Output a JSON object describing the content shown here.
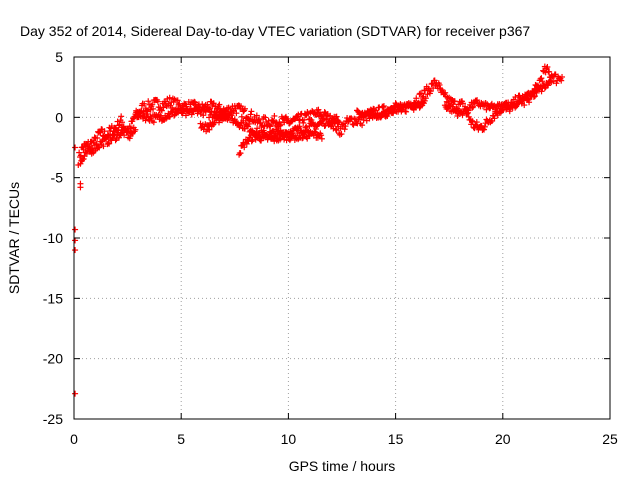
{
  "chart_data": {
    "type": "scatter",
    "title": "Day 352 of 2014, Sidereal Day-to-day VTEC variation (SDTVAR) for receiver p367",
    "xlabel": "GPS time / hours",
    "ylabel": "SDTVAR / TECUs",
    "xlim": [
      0,
      25
    ],
    "ylim": [
      -25,
      5
    ],
    "xticks": [
      0,
      5,
      10,
      15,
      20,
      25
    ],
    "yticks": [
      -25,
      -20,
      -15,
      -10,
      -5,
      0,
      5
    ],
    "grid": true,
    "marker": "plus",
    "color": "#ff0000",
    "series": [
      {
        "name": "SDTVAR",
        "outliers": [
          [
            0.3,
            -5.5
          ],
          [
            0.3,
            -5.8
          ],
          [
            0.05,
            -9.3
          ],
          [
            0.05,
            -10.2
          ],
          [
            0.05,
            -11.0
          ],
          [
            0.05,
            -22.9
          ],
          [
            0.05,
            -2.5
          ]
        ],
        "tracks": [
          {
            "points": [
              [
                0.2,
                -3.5
              ],
              [
                0.4,
                -2.5
              ],
              [
                0.7,
                -2.3
              ],
              [
                1.0,
                -2.0
              ],
              [
                1.2,
                -1.3
              ],
              [
                1.5,
                -1.5
              ],
              [
                1.8,
                -1.0
              ],
              [
                2.0,
                -0.8
              ],
              [
                2.2,
                -0.3
              ],
              [
                2.4,
                -0.9
              ],
              [
                2.6,
                -1.1
              ],
              [
                2.8,
                0.0
              ],
              [
                3.0,
                0.3
              ],
              [
                3.2,
                0.8
              ],
              [
                3.5,
                0.9
              ],
              [
                3.8,
                1.1
              ],
              [
                4.1,
                1.0
              ],
              [
                4.5,
                1.3
              ],
              [
                4.8,
                1.0
              ],
              [
                5.1,
                0.9
              ],
              [
                5.5,
                0.9
              ],
              [
                5.9,
                0.7
              ],
              [
                6.3,
                0.9
              ],
              [
                6.7,
                0.7
              ],
              [
                7.1,
                0.5
              ],
              [
                7.5,
                0.8
              ],
              [
                7.9,
                0.4
              ],
              [
                8.2,
                0.2
              ],
              [
                8.6,
                -0.4
              ],
              [
                9.0,
                -0.4
              ],
              [
                9.5,
                -0.3
              ],
              [
                10.0,
                -0.4
              ],
              [
                10.5,
                -0.2
              ],
              [
                11.0,
                0.1
              ],
              [
                11.4,
                0.3
              ],
              [
                11.8,
                0.0
              ],
              [
                12.1,
                -0.5
              ],
              [
                12.4,
                -1.1
              ],
              [
                12.7,
                -0.5
              ],
              [
                13.0,
                -0.2
              ],
              [
                13.4,
                -0.3
              ],
              [
                13.8,
                0.3
              ],
              [
                14.2,
                0.4
              ],
              [
                14.6,
                0.6
              ],
              [
                15.0,
                0.9
              ],
              [
                15.3,
                0.6
              ],
              [
                15.6,
                1.0
              ],
              [
                16.0,
                1.5
              ],
              [
                16.3,
                1.8
              ],
              [
                16.6,
                2.4
              ],
              [
                16.9,
                2.9
              ],
              [
                17.2,
                1.8
              ],
              [
                17.5,
                1.3
              ],
              [
                17.8,
                1.0
              ],
              [
                18.1,
                1.0
              ],
              [
                18.3,
                0.4
              ],
              [
                18.6,
                -0.6
              ],
              [
                18.9,
                -0.9
              ],
              [
                19.2,
                -0.6
              ],
              [
                19.5,
                0.1
              ],
              [
                19.8,
                0.6
              ],
              [
                20.1,
                1.0
              ],
              [
                20.4,
                0.8
              ],
              [
                20.7,
                1.5
              ],
              [
                21.0,
                1.3
              ],
              [
                21.3,
                1.8
              ],
              [
                21.6,
                2.4
              ],
              [
                21.8,
                3.3
              ],
              [
                22.0,
                3.9
              ],
              [
                22.2,
                3.6
              ],
              [
                22.5,
                3.2
              ],
              [
                22.8,
                3.5
              ]
            ],
            "spread": 0.45
          },
          {
            "points": [
              [
                0.3,
                -3.8
              ],
              [
                0.6,
                -3.0
              ],
              [
                0.9,
                -2.6
              ],
              [
                1.3,
                -2.1
              ],
              [
                1.6,
                -1.9
              ],
              [
                1.9,
                -1.6
              ],
              [
                2.3,
                -1.2
              ],
              [
                2.6,
                -1.5
              ],
              [
                2.9,
                -1.0
              ]
            ],
            "spread": 0.35
          },
          {
            "points": [
              [
                2.9,
                0.3
              ],
              [
                3.3,
                0.1
              ],
              [
                3.8,
                -0.1
              ],
              [
                4.4,
                0.2
              ],
              [
                4.9,
                0.5
              ],
              [
                5.3,
                0.3
              ],
              [
                5.8,
                0.7
              ],
              [
                6.3,
                0.3
              ],
              [
                6.8,
                0.3
              ],
              [
                7.2,
                0.1
              ],
              [
                7.5,
                -0.3
              ],
              [
                7.9,
                -0.6
              ],
              [
                8.3,
                -1.0
              ],
              [
                8.7,
                -1.4
              ],
              [
                9.1,
                -1.4
              ],
              [
                9.6,
                -1.3
              ],
              [
                10.1,
                -1.2
              ],
              [
                10.6,
                -1.0
              ],
              [
                11.1,
                -0.8
              ],
              [
                11.5,
                -0.5
              ],
              [
                11.8,
                -0.3
              ],
              [
                12.1,
                -0.2
              ],
              [
                12.4,
                -0.2
              ]
            ],
            "spread": 0.35
          },
          {
            "points": [
              [
                5.9,
                -0.6
              ],
              [
                6.2,
                -0.9
              ],
              [
                6.5,
                -0.5
              ],
              [
                6.8,
                -0.1
              ],
              [
                7.2,
                0.2
              ]
            ],
            "spread": 0.3
          },
          {
            "points": [
              [
                7.7,
                -2.9
              ],
              [
                7.9,
                -2.3
              ],
              [
                8.1,
                -1.9
              ],
              [
                8.4,
                -1.6
              ],
              [
                8.8,
                -1.7
              ],
              [
                9.3,
                -1.8
              ],
              [
                9.8,
                -1.6
              ],
              [
                10.3,
                -1.6
              ],
              [
                10.8,
                -1.5
              ],
              [
                11.3,
                -1.4
              ],
              [
                11.6,
                -1.5
              ]
            ],
            "spread": 0.3
          },
          {
            "points": [
              [
                13.2,
                0.3
              ],
              [
                13.6,
                0.1
              ],
              [
                14.0,
                0.2
              ],
              [
                14.5,
                0.3
              ],
              [
                15.0,
                0.6
              ],
              [
                15.5,
                0.9
              ],
              [
                16.0,
                0.9
              ],
              [
                16.4,
                1.3
              ]
            ],
            "spread": 0.3
          },
          {
            "points": [
              [
                17.3,
                1.0
              ],
              [
                17.7,
                0.6
              ],
              [
                18.0,
                0.3
              ],
              [
                18.4,
                0.8
              ],
              [
                18.8,
                1.2
              ],
              [
                19.2,
                0.9
              ],
              [
                19.6,
                0.8
              ],
              [
                20.0,
                0.9
              ],
              [
                20.5,
                1.0
              ],
              [
                21.0,
                1.6
              ],
              [
                21.5,
                2.0
              ],
              [
                22.0,
                2.6
              ],
              [
                22.3,
                3.1
              ]
            ],
            "spread": 0.3
          }
        ]
      }
    ]
  }
}
